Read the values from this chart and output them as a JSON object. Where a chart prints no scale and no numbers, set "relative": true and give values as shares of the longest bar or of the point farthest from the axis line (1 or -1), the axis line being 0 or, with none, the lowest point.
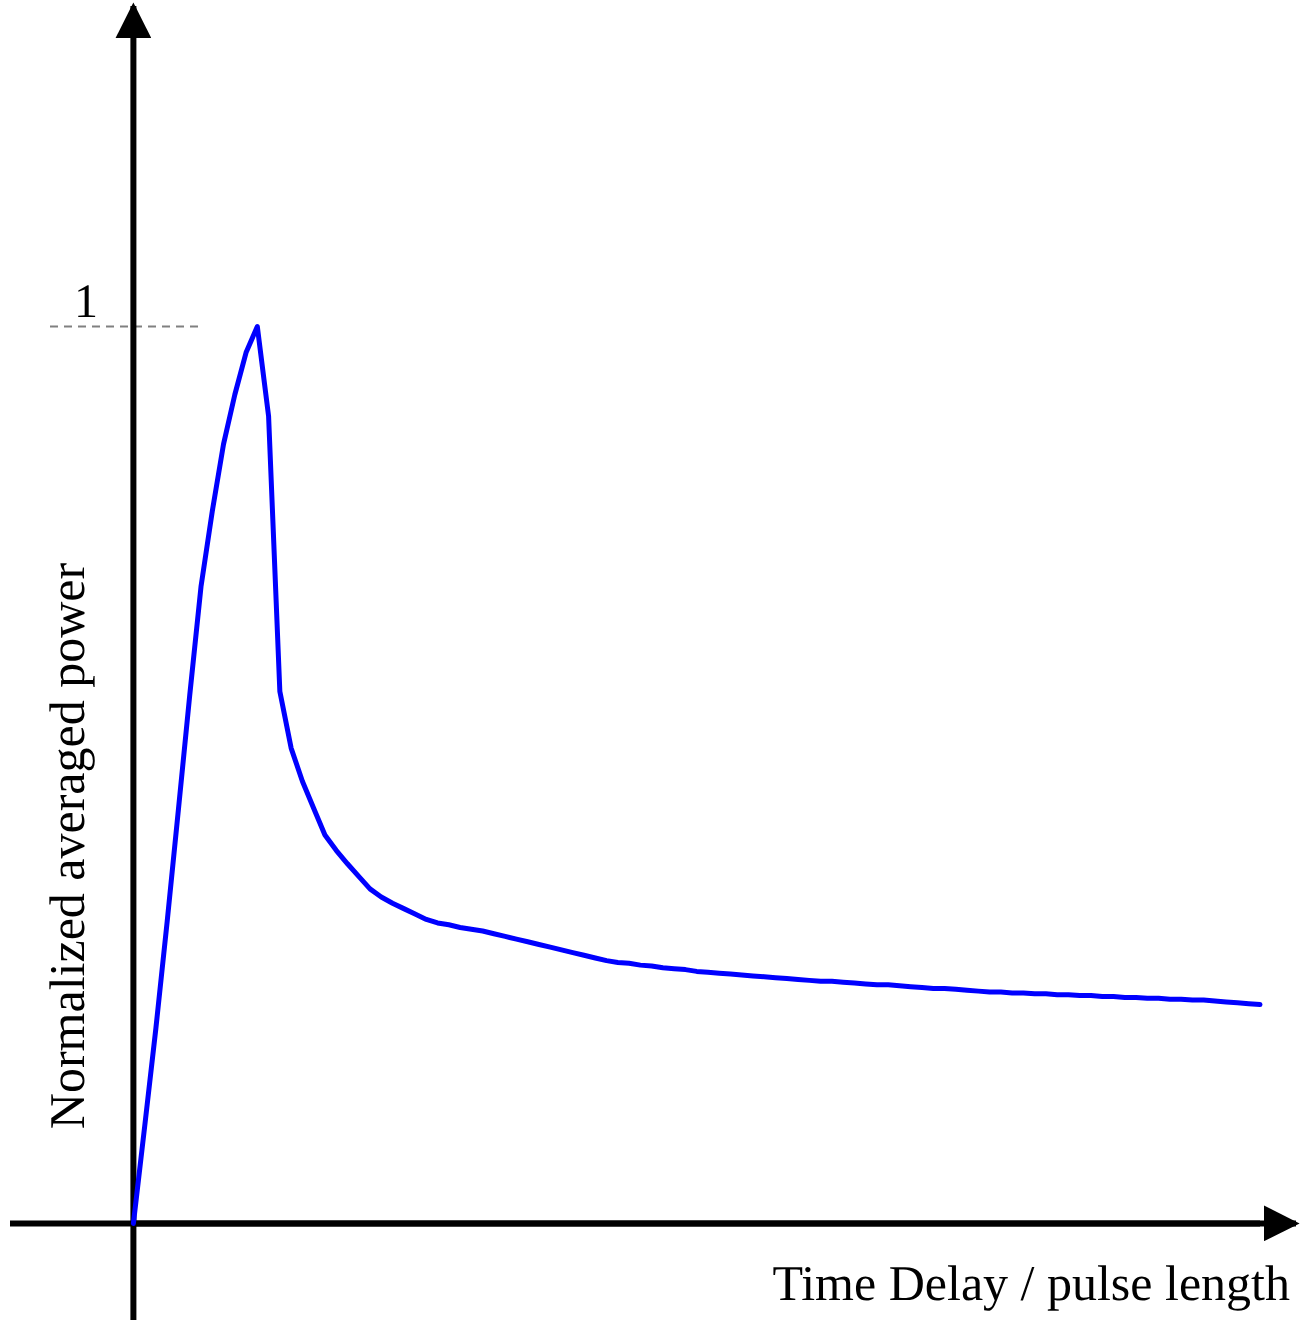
{
  "chart_data": {
    "type": "line",
    "xlabel": "Time Delay / pulse length",
    "ylabel": "Normalized averaged power",
    "relative": true,
    "categories": [
      null,
      null,
      null,
      null,
      null,
      null,
      null,
      null,
      null,
      null,
      null,
      null,
      null,
      null,
      null,
      null,
      null,
      null,
      null,
      null,
      null,
      null,
      null,
      null,
      null,
      null,
      null,
      null,
      null,
      null,
      null,
      null,
      null,
      null,
      null,
      null,
      null,
      null,
      null,
      null,
      null,
      null,
      null,
      null,
      null,
      null,
      null,
      null,
      null,
      null,
      null,
      null,
      null,
      null,
      null,
      null,
      null,
      null,
      null,
      null,
      null,
      null,
      null,
      null,
      null,
      null,
      null,
      null,
      null,
      null,
      null,
      null,
      null,
      null,
      null,
      null,
      null,
      null,
      null,
      null,
      null,
      null,
      null,
      null,
      null,
      null,
      null,
      null,
      null,
      null,
      null,
      null,
      null,
      null,
      null,
      null,
      null,
      null,
      null,
      null,
      null
    ],
    "series": [
      {
        "color": "#0000ff",
        "values": [
          0,
          0.108,
          0.218,
          0.337,
          0.462,
          0.589,
          0.71,
          0.794,
          0.869,
          0.924,
          0.971,
          1,
          0.9,
          0.593,
          0.53,
          0.493,
          0.463,
          0.433,
          0.416,
          0.401,
          0.387,
          0.373,
          0.364,
          0.357,
          0.351,
          0.345,
          0.339,
          0.335,
          0.333,
          0.33,
          0.328,
          0.326,
          0.323,
          0.32,
          0.317,
          0.314,
          0.311,
          0.308,
          0.305,
          0.302,
          0.299,
          0.296,
          0.293,
          0.291,
          0.29,
          0.288,
          0.287,
          0.285,
          0.284,
          0.283,
          0.281,
          0.28,
          0.279,
          0.278,
          0.277,
          0.276,
          0.275,
          0.274,
          0.273,
          0.272,
          0.271,
          0.27,
          0.27,
          0.269,
          0.268,
          0.267,
          0.266,
          0.266,
          0.265,
          0.264,
          0.263,
          0.262,
          0.262,
          0.261,
          0.26,
          0.259,
          0.258,
          0.258,
          0.257,
          0.257,
          0.256,
          0.256,
          0.255,
          0.255,
          0.254,
          0.254,
          0.253,
          0.253,
          0.252,
          0.252,
          0.251,
          0.251,
          0.25,
          0.25,
          0.249,
          0.249,
          0.248,
          0.247,
          0.246,
          0.245,
          0.244
        ]
      }
    ],
    "ref_lines": [
      {
        "axis": "y",
        "value": 1,
        "label": "1",
        "color": "#808080",
        "line_style": "dashed"
      }
    ],
    "marker": "none",
    "line_style": "solid"
  }
}
